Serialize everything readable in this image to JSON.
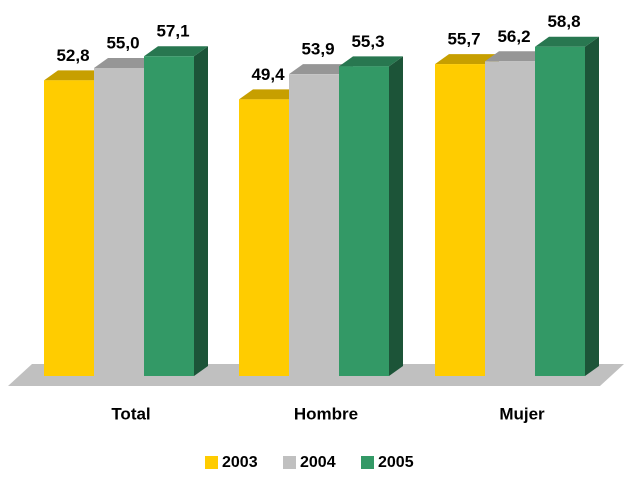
{
  "chart_data": {
    "type": "bar3d",
    "categories": [
      "Total",
      "Hombre",
      "Mujer"
    ],
    "series": [
      {
        "name": "2003",
        "color": "#ffcc00",
        "values": [
          52.8,
          49.4,
          55.7
        ],
        "value_labels": [
          "52,8",
          "49,4",
          "55,7"
        ]
      },
      {
        "name": "2004",
        "color": "#c0c0c0",
        "values": [
          55.0,
          53.9,
          56.2
        ],
        "value_labels": [
          "55,0",
          "53,9",
          "56,2"
        ]
      },
      {
        "name": "2005",
        "color": "#339966",
        "values": [
          57.1,
          55.3,
          58.8
        ],
        "value_labels": [
          "57,1",
          "55,3",
          "58,8"
        ]
      }
    ]
  }
}
